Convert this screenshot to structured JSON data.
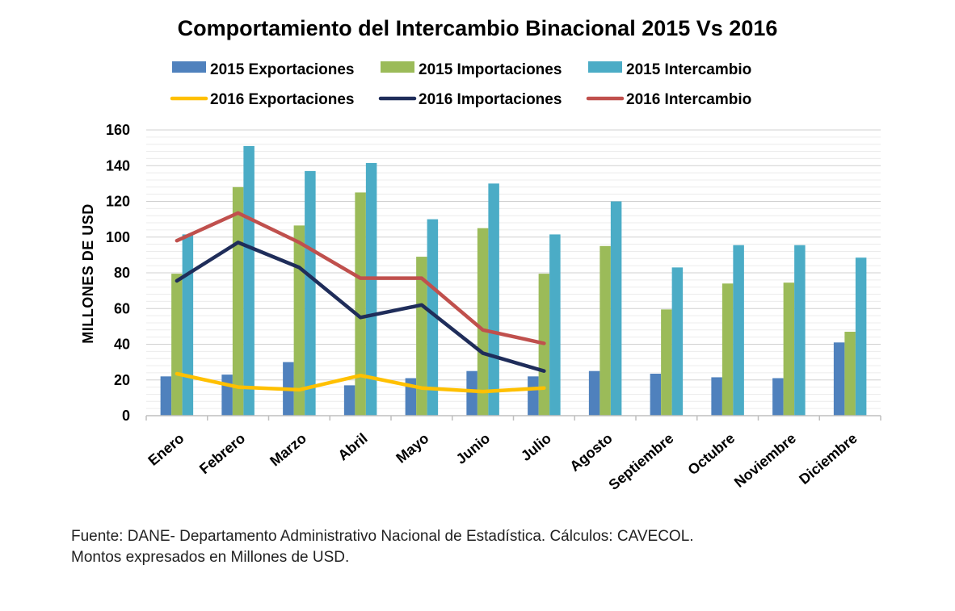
{
  "chart_data": {
    "type": "bar",
    "title": "Comportamiento del Intercambio Binacional 2015 Vs 2016",
    "ylabel": "MILLONES DE USD",
    "xlabel": "",
    "ylim": [
      0,
      160
    ],
    "yticks": [
      0,
      20,
      40,
      60,
      80,
      100,
      120,
      140,
      160
    ],
    "grid": true,
    "legend_position": "top",
    "categories": [
      "Enero",
      "Febrero",
      "Marzo",
      "Abril",
      "Mayo",
      "Junio",
      "Julio",
      "Agosto",
      "Septiembre",
      "Octubre",
      "Noviembre",
      "Diciembre"
    ],
    "bar_series": [
      {
        "name": "2015 Exportaciones",
        "color": "#4f81bd",
        "values": [
          22,
          23,
          30,
          17,
          21,
          25,
          22,
          25,
          23.5,
          21.5,
          21,
          41
        ]
      },
      {
        "name": "2015 Importaciones",
        "color": "#9bbb59",
        "values": [
          79.5,
          128,
          106.5,
          125,
          89,
          105,
          79.5,
          95,
          59.5,
          74,
          74.5,
          47
        ]
      },
      {
        "name": "2015 Intercambio",
        "color": "#4bacc6",
        "values": [
          101.5,
          151,
          137,
          141.5,
          110,
          130,
          101.5,
          120,
          83,
          95.5,
          95.5,
          88.5
        ]
      }
    ],
    "line_series": [
      {
        "name": "2016 Exportaciones",
        "color": "#ffc000",
        "values": [
          23.5,
          16,
          14.5,
          22.5,
          15.5,
          13.5,
          15.5
        ]
      },
      {
        "name": "2016 Importaciones",
        "color": "#1f2d5a",
        "values": [
          75.5,
          97,
          83,
          55,
          62,
          35,
          25
        ]
      },
      {
        "name": "2016 Intercambio",
        "color": "#c0504d",
        "values": [
          98,
          113.5,
          97,
          77,
          77,
          48,
          40.5
        ]
      }
    ]
  },
  "source_line1": "Fuente: DANE- Departamento Administrativo Nacional de Estadística. Cálculos: CAVECOL.",
  "source_line2": "Montos expresados en Millones de USD."
}
